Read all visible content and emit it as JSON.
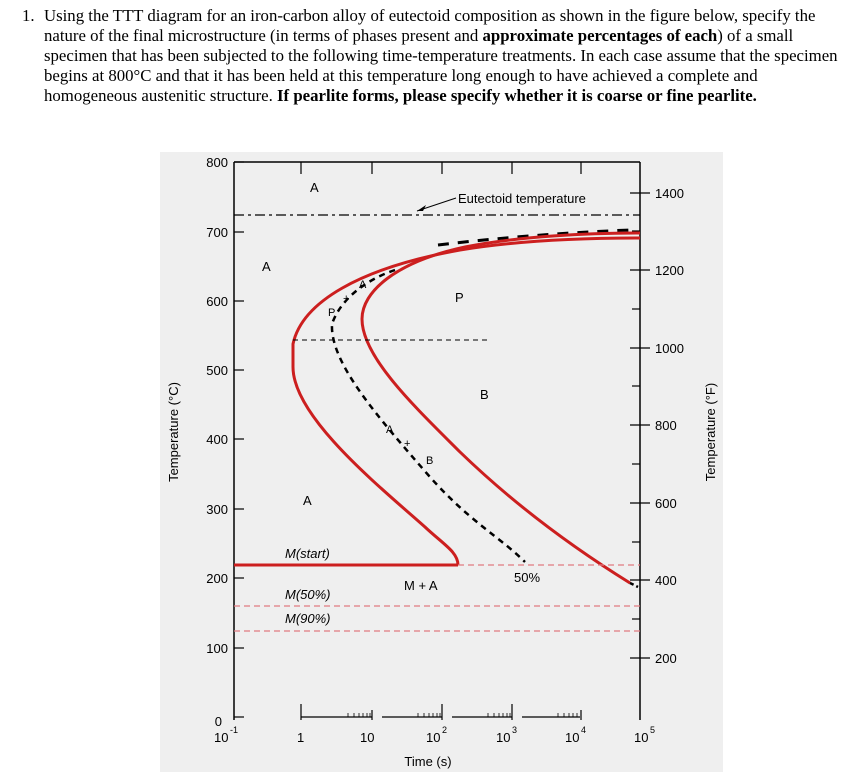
{
  "question": {
    "number": "1.",
    "t1": "Using the TTT diagram for an iron-carbon alloy of eutectoid composition as shown in the figure below, specify the nature of the final microstructure (in terms of phases present and ",
    "b1": "approximate percentages of each",
    "t2": ") of a small specimen that has been subjected to the following time-temperature treatments. In each case assume that the specimen begins at 800°C and that it has been held at this temperature long enough to have achieved a complete and homogeneous austenitic structure. ",
    "b2": "If pearlite forms, please specify whether it is coarse or fine pearlite."
  },
  "figure": {
    "left_axis_label": "Temperature (°C)",
    "right_axis_label": "Temperature (°F)",
    "x_axis_label": "Time (s)",
    "celsius_ticks": [
      "800",
      "700",
      "600",
      "500",
      "400",
      "300",
      "200",
      "100",
      "0"
    ],
    "fahrenheit_ticks": [
      "1400",
      "1200",
      "1000",
      "800",
      "600",
      "400",
      "200"
    ],
    "time_ticks": [
      "10",
      "-1",
      "1",
      "10",
      "10",
      "2",
      "10",
      "3",
      "10",
      "4",
      "10",
      "5"
    ],
    "labels": {
      "eutectoid": "Eutectoid temperature",
      "a_top": "A",
      "a_left": "A",
      "a_bottom": "A",
      "p_region": "P",
      "b_region": "B",
      "a_curve_top": "A",
      "p_curve": "P",
      "a_curve_mid": "A",
      "b_curve": "B",
      "m_start": "M(start)",
      "m_50": "M(50%)",
      "m_90": "M(90%)",
      "m_plus_a": "M + A",
      "fifty_pct": "50%"
    },
    "colors": {
      "curve": "#cc1f1f",
      "dashed_ref": "#e07a80",
      "axis": "#000000"
    }
  }
}
